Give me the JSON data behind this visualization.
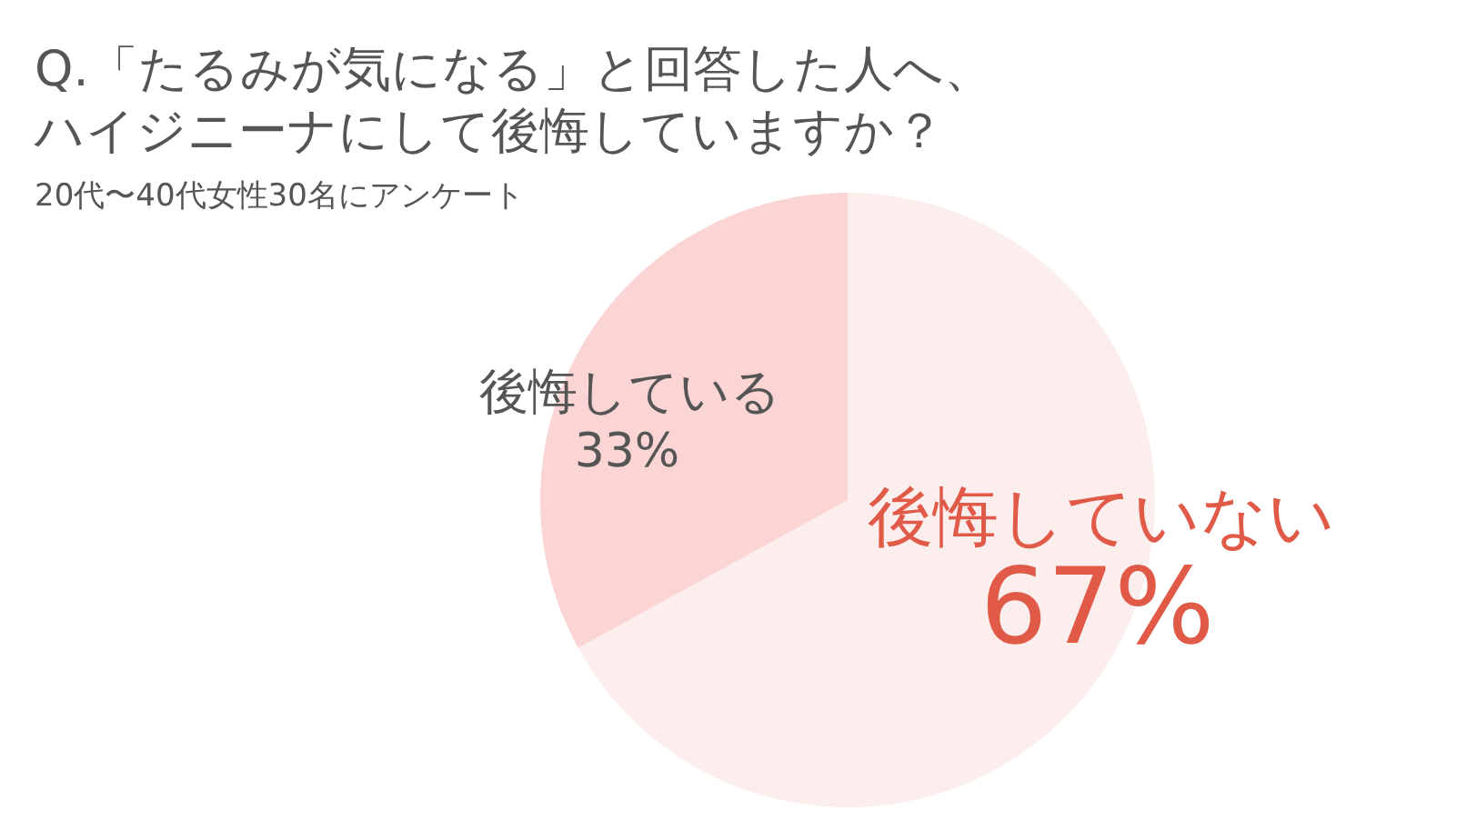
{
  "chart_data": {
    "type": "pie",
    "title": "Q.「たるみが気になる」と回答した人へ、ハイジニーナにして後悔していますか？",
    "subtitle": "20代〜40代女性30名にアンケート",
    "categories": [
      "後悔していない",
      "後悔している"
    ],
    "values": [
      67,
      33
    ],
    "colors": [
      "#fdeeee",
      "#fbd4d4"
    ],
    "value_labels": [
      "67%",
      "33%"
    ]
  }
}
